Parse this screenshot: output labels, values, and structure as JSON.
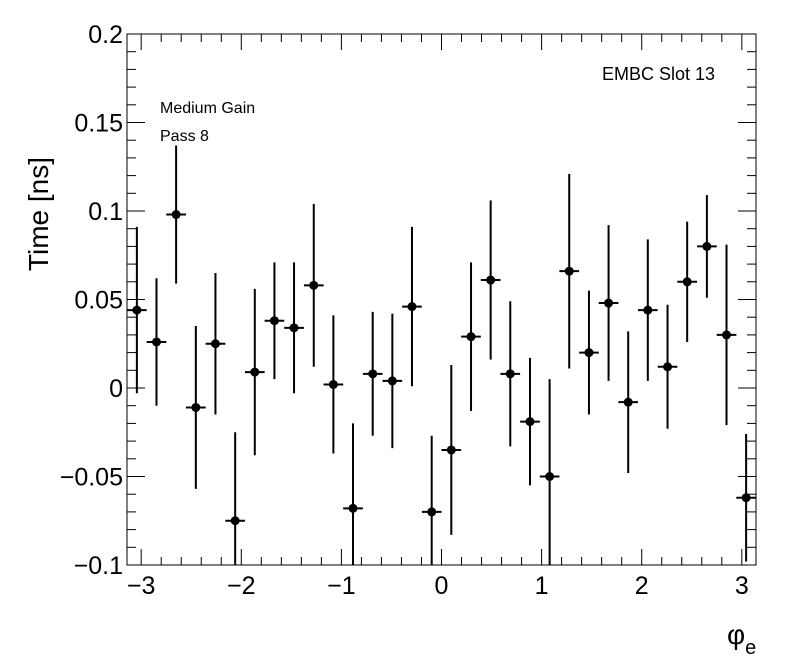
{
  "chart_data": {
    "type": "scatter",
    "style": "error-bars",
    "xlabel_symbol": "φ",
    "xlabel_subscript": "e",
    "ylabel": "Time [ns]",
    "xlim": [
      -3.1416,
      3.1416
    ],
    "ylim": [
      -0.1,
      0.2
    ],
    "x_ticks": [
      -3,
      -2,
      -1,
      0,
      1,
      2,
      3
    ],
    "x_tick_labels": [
      "−3",
      "−2",
      "−1",
      "0",
      "1",
      "2",
      "3"
    ],
    "y_ticks": [
      -0.1,
      -0.05,
      0,
      0.05,
      0.1,
      0.15,
      0.2
    ],
    "y_tick_labels": [
      "−0.1",
      "−0.05",
      "0",
      "0.05",
      "0.1",
      "0.15",
      "0.2"
    ],
    "x_half_width": 0.0982,
    "annotations": {
      "slot": "EMBC Slot 13",
      "gain": "Medium Gain",
      "pass": "Pass 8"
    },
    "points": [
      {
        "x": -3.043,
        "y": 0.044,
        "err": 0.047
      },
      {
        "x": -2.847,
        "y": 0.026,
        "err": 0.036
      },
      {
        "x": -2.651,
        "y": 0.098,
        "err": 0.039
      },
      {
        "x": -2.454,
        "y": -0.011,
        "err": 0.046
      },
      {
        "x": -2.258,
        "y": 0.025,
        "err": 0.04
      },
      {
        "x": -2.061,
        "y": -0.075,
        "err": 0.05
      },
      {
        "x": -1.865,
        "y": 0.009,
        "err": 0.047
      },
      {
        "x": -1.669,
        "y": 0.038,
        "err": 0.033
      },
      {
        "x": -1.473,
        "y": 0.034,
        "err": 0.037
      },
      {
        "x": -1.276,
        "y": 0.058,
        "err": 0.046
      },
      {
        "x": -1.08,
        "y": 0.002,
        "err": 0.039
      },
      {
        "x": -0.884,
        "y": -0.068,
        "err": 0.048
      },
      {
        "x": -0.687,
        "y": 0.008,
        "err": 0.035
      },
      {
        "x": -0.491,
        "y": 0.004,
        "err": 0.038
      },
      {
        "x": -0.295,
        "y": 0.046,
        "err": 0.045
      },
      {
        "x": -0.098,
        "y": -0.07,
        "err": 0.043
      },
      {
        "x": 0.098,
        "y": -0.035,
        "err": 0.048
      },
      {
        "x": 0.295,
        "y": 0.029,
        "err": 0.042
      },
      {
        "x": 0.491,
        "y": 0.061,
        "err": 0.045
      },
      {
        "x": 0.687,
        "y": 0.008,
        "err": 0.041
      },
      {
        "x": 0.884,
        "y": -0.019,
        "err": 0.036
      },
      {
        "x": 1.08,
        "y": -0.05,
        "err": 0.055
      },
      {
        "x": 1.276,
        "y": 0.066,
        "err": 0.055
      },
      {
        "x": 1.473,
        "y": 0.02,
        "err": 0.035
      },
      {
        "x": 1.669,
        "y": 0.048,
        "err": 0.044
      },
      {
        "x": 1.865,
        "y": -0.008,
        "err": 0.04
      },
      {
        "x": 2.061,
        "y": 0.044,
        "err": 0.04
      },
      {
        "x": 2.258,
        "y": 0.012,
        "err": 0.035
      },
      {
        "x": 2.454,
        "y": 0.06,
        "err": 0.034
      },
      {
        "x": 2.651,
        "y": 0.08,
        "err": 0.029
      },
      {
        "x": 2.847,
        "y": 0.03,
        "err": 0.051
      },
      {
        "x": 3.043,
        "y": -0.062,
        "err": 0.036
      }
    ]
  }
}
